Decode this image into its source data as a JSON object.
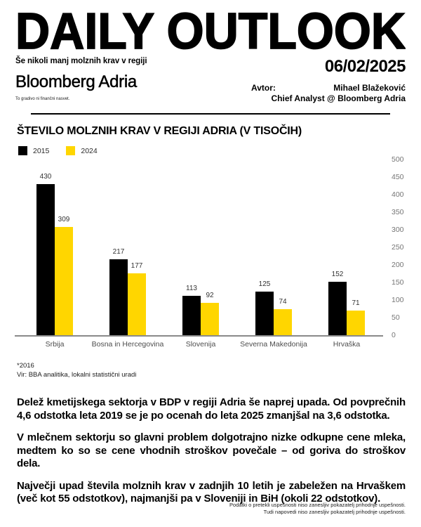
{
  "header": {
    "title": "DAILY OUTLOOK",
    "subtitle": "Še nikoli manj molznih krav v regiji",
    "date": "06/02/2025",
    "brand": "Bloomberg Adria",
    "brand_note": "To gradivo ni finančni nasvet.",
    "author_label": "Avtor:",
    "author_name": "Mihael Blažeković",
    "author_title": "Chief Analyst @ Bloomberg Adria"
  },
  "chart": {
    "title": "ŠTEVILO MOLZNIH KRAV V REGIJI ADRIA (V TISOČIH)",
    "footnote": "*2016",
    "source": "Vir: BBA analitika, lokalni statistični uradi"
  },
  "chart_data": {
    "type": "bar",
    "title": "ŠTEVILO MOLZNIH KRAV V REGIJI ADRIA (V TISOČIH)",
    "categories": [
      "Srbija",
      "Bosna in Hercegovina",
      "Slovenija",
      "Severna Makedonija",
      "Hrvaška"
    ],
    "series": [
      {
        "name": "2015",
        "color": "#000000",
        "values": [
          430,
          217,
          113,
          125,
          152
        ]
      },
      {
        "name": "2024",
        "color": "#FFD600",
        "values": [
          309,
          177,
          92,
          74,
          71
        ]
      }
    ],
    "ylim": [
      0,
      500
    ],
    "ytick_step": 50,
    "yaxis_side": "right",
    "grid": false,
    "legend_position": "top-left",
    "value_labels": true
  },
  "body": {
    "paragraphs": [
      "Delež kmetijskega sektorja v BDP v regiji Adria še naprej upada. Od povprečnih 4,6 odstotka leta 2019 se je po ocenah do leta 2025 zmanjšal na 3,6 odstotka.",
      "V mlečnem sektorju so glavni problem dolgotrajno nizke odkupne cene mleka, medtem ko so se cene vhodnih stroškov povečale – od goriva do stroškov dela.",
      "Največji upad števila molznih krav v zadnjih 10 letih je zabeležen na Hrvaškem (več kot 55 odstotkov), najmanjši pa v Sloveniji in BiH (okoli 22 odstotkov)."
    ]
  },
  "footer": {
    "lines": [
      "Podatki o pretekli uspešnosti niso zanesljiv pokazatelj prihodnje uspešnosti.",
      "Tudi napovedi niso zanesljiv pokazatelj prihodnje uspešnosti."
    ]
  }
}
